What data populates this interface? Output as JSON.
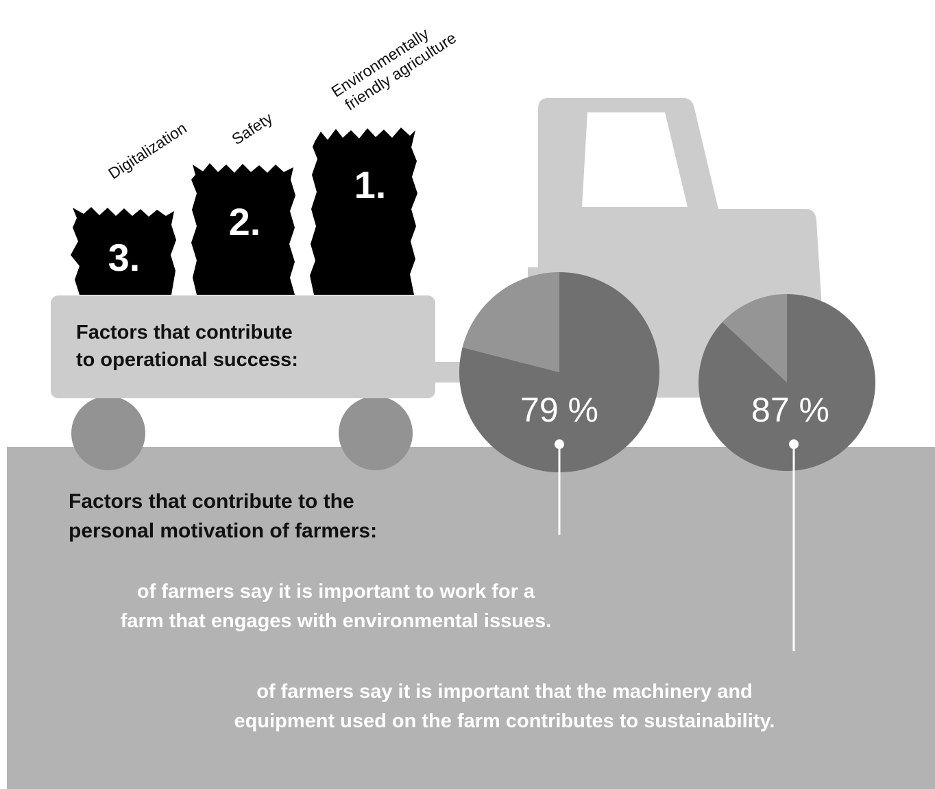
{
  "colors": {
    "background": "#ffffff",
    "ground": "#b3b3b3",
    "tractor_body": "#cccccc",
    "trailer_wheel": "#939393",
    "pie_main": "#707070",
    "pie_rest": "#959595",
    "hay_bale": "#000000",
    "dark_text": "#111111",
    "light_text": "#ffffff"
  },
  "icons": {
    "tractor": "tractor-icon",
    "hay_bale": "hay-bale-icon",
    "trailer": "trailer-icon"
  },
  "ranking": {
    "items": [
      {
        "rank": "1.",
        "label_line1": "Environmentally",
        "label_line2": "friendly agriculture"
      },
      {
        "rank": "2.",
        "label_line1": "Safety",
        "label_line2": ""
      },
      {
        "rank": "3.",
        "label_line1": "Digitalization",
        "label_line2": ""
      }
    ]
  },
  "trailer": {
    "title_line1": "Factors that contribute",
    "title_line2": "to operational success:"
  },
  "motivation": {
    "title_line1": "Factors that contribute to the",
    "title_line2": "personal motivation of farmers:"
  },
  "stat1": {
    "value": 79,
    "label": "79 %",
    "text_line1": "of farmers say it is important to work for a",
    "text_line2": "farm that engages with environmental issues."
  },
  "stat2": {
    "value": 87,
    "label": "87 %",
    "text_line1": "of farmers say it is important that the machinery and",
    "text_line2": "equipment used on the farm contributes to sustainability."
  },
  "chart_data": [
    {
      "type": "pie",
      "values": [
        79,
        21
      ],
      "data_labels": [
        "79 %"
      ]
    },
    {
      "type": "pie",
      "values": [
        87,
        13
      ],
      "data_labels": [
        "87 %"
      ]
    }
  ]
}
